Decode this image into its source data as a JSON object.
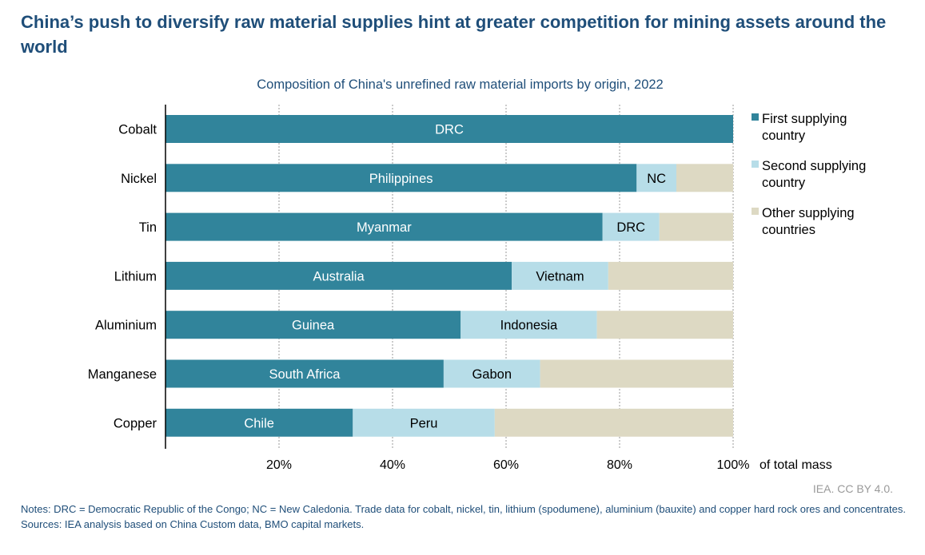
{
  "title": "China’s push to diversify raw material supplies hint at greater competition for mining assets around the world",
  "notes": "Notes: DRC = Democratic Republic of the Congo; NC = New Caledonia. Trade data for cobalt, nickel, tin, lithium (spodumene), aluminium (bauxite) and copper hard rock ores and concentrates.",
  "sources": "Sources: IEA analysis based on China Custom data, BMO capital markets.",
  "credit": "IEA. CC BY 4.0.",
  "chart_data": {
    "type": "bar",
    "orientation": "horizontal",
    "stacked": true,
    "title": "Composition of China's unrefined raw material imports by origin, 2022",
    "xlabel": "of total mass",
    "ylabel": "",
    "xlim": [
      0,
      100
    ],
    "x_ticks": [
      20,
      40,
      60,
      80,
      100
    ],
    "x_tick_labels": [
      "20%",
      "40%",
      "60%",
      "80%",
      "100%"
    ],
    "grid": "vertical dotted",
    "legend_position": "right",
    "categories": [
      "Cobalt",
      "Nickel",
      "Tin",
      "Lithium",
      "Aluminium",
      "Manganese",
      "Copper"
    ],
    "series": [
      {
        "name": "First supplying country",
        "color": "#31849b",
        "label_color": "#ffffff",
        "values": [
          100,
          83,
          77,
          61,
          52,
          49,
          33
        ],
        "labels": [
          "DRC",
          "Philippines",
          "Myanmar",
          "Australia",
          "Guinea",
          "South Africa",
          "Chile"
        ]
      },
      {
        "name": "Second supplying country",
        "color": "#b7dde8",
        "label_color": "#000000",
        "values": [
          0,
          7,
          10,
          17,
          24,
          17,
          25
        ],
        "labels": [
          "",
          "NC",
          "DRC",
          "Vietnam",
          "Indonesia",
          "Gabon",
          "Peru"
        ]
      },
      {
        "name": "Other supplying countries",
        "color": "#ddd9c3",
        "label_color": "#000000",
        "values": [
          0,
          10,
          13,
          22,
          24,
          34,
          42
        ],
        "labels": [
          "",
          "",
          "",
          "",
          "",
          "",
          ""
        ]
      }
    ],
    "legend": [
      {
        "line1": "First supplying",
        "line2": "country",
        "color": "#31849b"
      },
      {
        "line1": "Second supplying",
        "line2": "country",
        "color": "#b7dde8"
      },
      {
        "line1": "Other supplying",
        "line2": "countries",
        "color": "#ddd9c3"
      }
    ]
  }
}
